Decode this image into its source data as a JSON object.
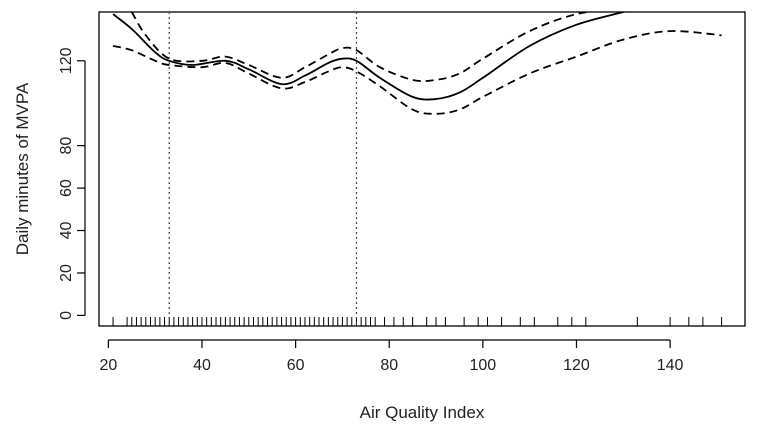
{
  "chart_data": {
    "type": "line",
    "xlabel": "Air Quality Index",
    "ylabel": "Daily minutes of MVPA",
    "xlim": [
      18,
      156
    ],
    "ylim": [
      -5,
      143
    ],
    "x_ticks": [
      20,
      40,
      60,
      80,
      100,
      120,
      140
    ],
    "y_ticks": [
      0,
      20,
      40,
      60,
      80,
      120
    ],
    "grid": false,
    "legend": "none",
    "reference_lines_x": [
      33,
      73
    ],
    "series": [
      {
        "style": "solid",
        "x": [
          21,
          25,
          30,
          33,
          38,
          45,
          50,
          57,
          62,
          67,
          70,
          73,
          78,
          85,
          90,
          95,
          100,
          110,
          120,
          130,
          135
        ],
        "y": [
          142,
          135,
          124,
          120,
          118,
          120,
          116,
          109,
          113,
          119,
          121,
          120,
          112,
          103,
          102,
          105,
          112,
          127,
          137,
          143,
          146
        ]
      },
      {
        "style": "dashed",
        "x": [
          25,
          28,
          33,
          40,
          45,
          50,
          57,
          62,
          67,
          70,
          73,
          78,
          85,
          90,
          95,
          100,
          110,
          120,
          130,
          133
        ],
        "y": [
          143,
          132,
          121,
          120,
          122,
          118,
          112,
          117,
          123,
          126,
          125,
          117,
          111,
          111,
          114,
          121,
          134,
          142,
          145,
          146
        ]
      },
      {
        "style": "dashed",
        "x": [
          21,
          25,
          30,
          33,
          40,
          45,
          50,
          57,
          62,
          67,
          70,
          73,
          78,
          85,
          90,
          95,
          100,
          110,
          120,
          130,
          140,
          151
        ],
        "y": [
          127,
          125,
          120,
          118,
          117,
          119,
          114,
          107,
          110,
          115,
          117,
          115,
          108,
          97,
          95,
          97,
          103,
          114,
          122,
          130,
          134,
          132
        ]
      }
    ],
    "rug": [
      21,
      24,
      25,
      26,
      27,
      28,
      29,
      30,
      31,
      32,
      33,
      34,
      35,
      36,
      37,
      38,
      39,
      40,
      41,
      42,
      43,
      44,
      45,
      46,
      47,
      48,
      49,
      50,
      51,
      52,
      53,
      54,
      55,
      56,
      57,
      58,
      59,
      60,
      61,
      62,
      63,
      64,
      65,
      66,
      67,
      68,
      69,
      70,
      71,
      72,
      73,
      74,
      75,
      76,
      77,
      79,
      81,
      83,
      85,
      88,
      90,
      92,
      96,
      99,
      101,
      104,
      108,
      111,
      116,
      119,
      122,
      133,
      140,
      144,
      147,
      151
    ]
  },
  "colors": {
    "ink": "#000000",
    "reference": "#2f4f4f",
    "text": "#222222"
  }
}
